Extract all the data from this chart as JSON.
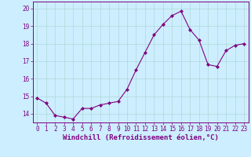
{
  "x": [
    0,
    1,
    2,
    3,
    4,
    5,
    6,
    7,
    8,
    9,
    10,
    11,
    12,
    13,
    14,
    15,
    16,
    17,
    18,
    19,
    20,
    21,
    22,
    23
  ],
  "y": [
    14.9,
    14.6,
    13.9,
    13.8,
    13.7,
    14.3,
    14.3,
    14.5,
    14.6,
    14.7,
    15.4,
    16.5,
    17.5,
    18.5,
    19.1,
    19.6,
    19.85,
    18.8,
    18.2,
    16.8,
    16.7,
    17.6,
    17.9,
    18.0
  ],
  "line_color": "#800080",
  "marker": "D",
  "marker_size": 2.0,
  "bg_color": "#cceeff",
  "grid_color": "#aadddd",
  "xlabel": "Windchill (Refroidissement éolien,°C)",
  "ylim": [
    13.5,
    20.4
  ],
  "xlim": [
    -0.5,
    23.5
  ],
  "yticks": [
    14,
    15,
    16,
    17,
    18,
    19,
    20
  ],
  "xtick_labels": [
    "0",
    "1",
    "2",
    "3",
    "4",
    "5",
    "6",
    "7",
    "8",
    "9",
    "10",
    "11",
    "12",
    "13",
    "14",
    "15",
    "16",
    "17",
    "18",
    "19",
    "20",
    "21",
    "22",
    "23"
  ],
  "tick_fontsize": 5.5,
  "xlabel_fontsize": 6.5,
  "spine_color": "#800080",
  "text_color": "#800080"
}
